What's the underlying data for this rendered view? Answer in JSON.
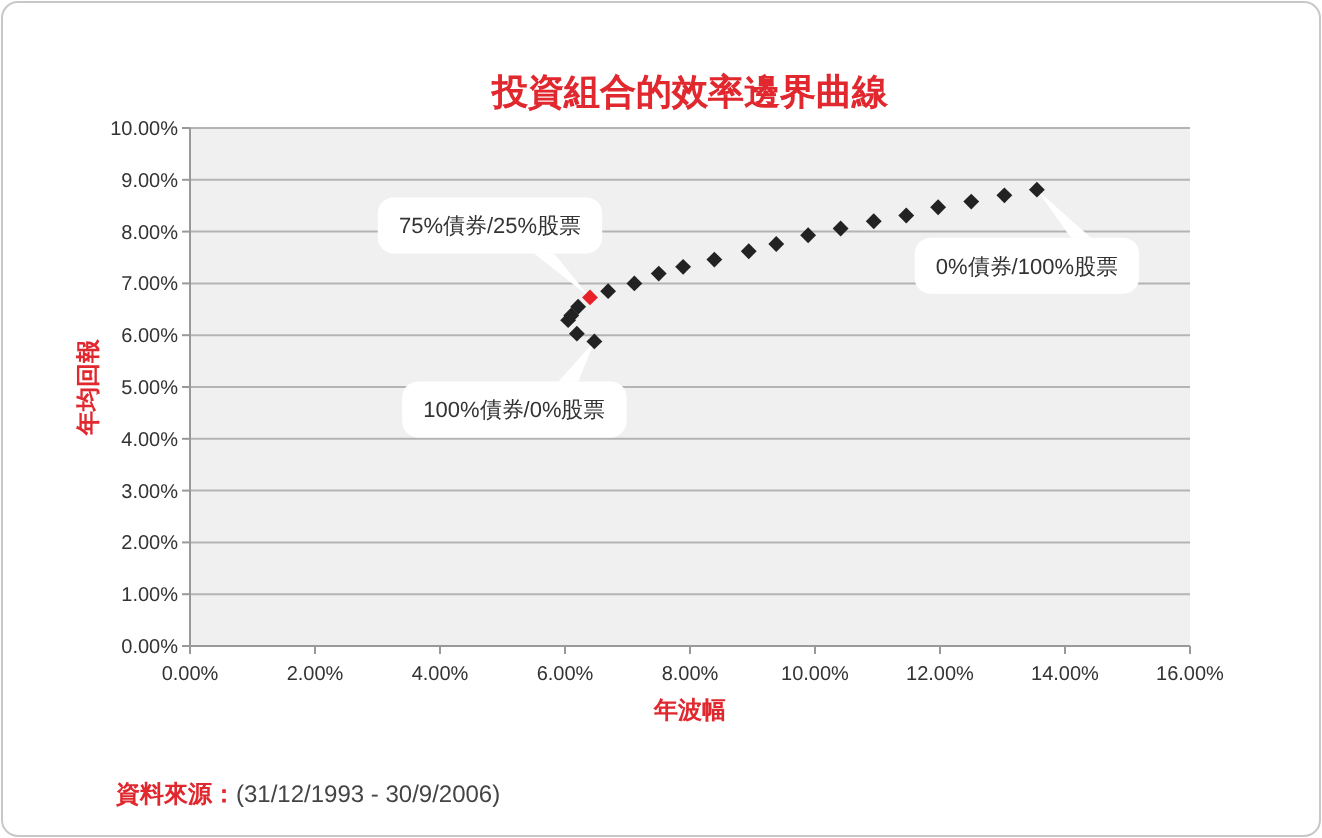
{
  "chart_data": {
    "type": "scatter",
    "title": "投資組合的效率邊界曲線",
    "xlabel": "年波幅",
    "ylabel": "年均回報",
    "series": [
      {
        "color": "#222222",
        "x": [
          6.47,
          6.19,
          6.05,
          6.1,
          6.21,
          6.69,
          7.11,
          7.5,
          7.89,
          8.39,
          8.94,
          9.38,
          9.89,
          10.41,
          10.94,
          11.46,
          11.97,
          12.5,
          13.03,
          13.55
        ],
        "values": [
          5.88,
          6.03,
          6.29,
          6.38,
          6.55,
          6.85,
          7.0,
          7.19,
          7.32,
          7.46,
          7.62,
          7.76,
          7.93,
          8.06,
          8.2,
          8.31,
          8.47,
          8.58,
          8.7,
          8.81
        ]
      },
      {
        "color": "#e8202a",
        "x": [
          6.4
        ],
        "values": [
          6.73
        ]
      }
    ],
    "annotations": [
      {
        "text": "75%債券/25%股票",
        "x": 6.4,
        "y": 6.73
      },
      {
        "text": "0%債券/100%股票",
        "x": 13.55,
        "y": 8.81
      },
      {
        "text": "100%債券/0%股票",
        "x": 6.47,
        "y": 5.88
      },
      "資料來源：(31/12/1993 - 30/9/2006)"
    ],
    "xlim": [
      0,
      16
    ],
    "ylim": [
      0,
      10
    ],
    "xticks": [
      {
        "value": 0,
        "label": "0.00%"
      },
      {
        "value": 2,
        "label": "2.00%"
      },
      {
        "value": 4,
        "label": "4.00%"
      },
      {
        "value": 6,
        "label": "6.00%"
      },
      {
        "value": 8,
        "label": "8.00%"
      },
      {
        "value": 10,
        "label": "10.00%"
      },
      {
        "value": 12,
        "label": "12.00%"
      },
      {
        "value": 14,
        "label": "14.00%"
      },
      {
        "value": 16,
        "label": "16.00%"
      }
    ],
    "yticks": [
      {
        "value": 0,
        "label": "0.00%"
      },
      {
        "value": 1,
        "label": "1.00%"
      },
      {
        "value": 2,
        "label": "2.00%"
      },
      {
        "value": 3,
        "label": "3.00%"
      },
      {
        "value": 4,
        "label": "4.00%"
      },
      {
        "value": 5,
        "label": "5.00%"
      },
      {
        "value": 6,
        "label": "6.00%"
      },
      {
        "value": 7,
        "label": "7.00%"
      },
      {
        "value": 8,
        "label": "8.00%"
      },
      {
        "value": 9,
        "label": "9.00%"
      },
      {
        "value": 10,
        "label": "10.00%"
      }
    ],
    "grid": "y",
    "marker": "diamond"
  }
}
